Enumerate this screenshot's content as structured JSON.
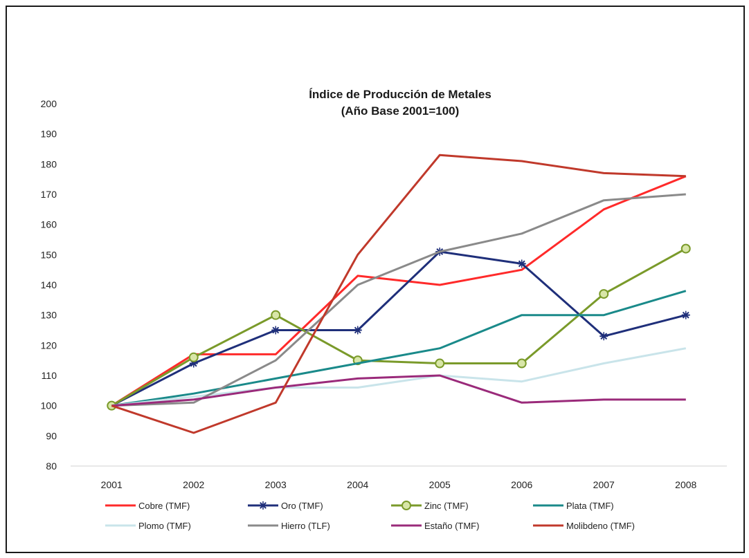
{
  "chart_data": {
    "type": "line",
    "title": "Índice de Producción de Metales",
    "subtitle": "(Año Base 2001=100)",
    "xlabel": "",
    "ylabel": "",
    "categories": [
      "2001",
      "2002",
      "2003",
      "2004",
      "2005",
      "2006",
      "2007",
      "2008"
    ],
    "ylim": [
      80,
      200
    ],
    "yticks": [
      80,
      90,
      100,
      110,
      120,
      130,
      140,
      150,
      160,
      170,
      180,
      190,
      200
    ],
    "grid": false,
    "legend_position": "bottom",
    "series": [
      {
        "name": "Cobre (TMF)",
        "color": "#ff2a2a",
        "marker": "none",
        "values": [
          100,
          117,
          117,
          143,
          140,
          145,
          165,
          176
        ]
      },
      {
        "name": "Oro (TMF)",
        "color": "#1f2f7a",
        "marker": "star",
        "values": [
          100,
          114,
          125,
          125,
          151,
          147,
          123,
          130
        ]
      },
      {
        "name": "Zinc (TMF)",
        "color": "#7a9a2a",
        "marker": "circle",
        "values": [
          100,
          116,
          130,
          115,
          114,
          114,
          137,
          152
        ]
      },
      {
        "name": "Plata (TMF)",
        "color": "#1a8a8a",
        "marker": "none",
        "values": [
          100,
          104,
          109,
          114,
          119,
          130,
          130,
          138
        ]
      },
      {
        "name": "Plomo (TMF)",
        "color": "#c9e4ea",
        "marker": "none",
        "values": [
          100,
          103,
          106,
          106,
          110,
          108,
          114,
          119
        ]
      },
      {
        "name": "Hierro (TLF)",
        "color": "#8a8a8a",
        "marker": "none",
        "values": [
          100,
          101,
          115,
          140,
          151,
          157,
          168,
          170
        ]
      },
      {
        "name": "Estaño (TMF)",
        "color": "#9a2a7a",
        "marker": "none",
        "values": [
          100,
          102,
          106,
          109,
          110,
          101,
          102,
          102
        ]
      },
      {
        "name": "Molibdeno (TMF)",
        "color": "#c0392b",
        "marker": "none",
        "values": [
          100,
          91,
          101,
          150,
          183,
          181,
          177,
          176
        ]
      }
    ]
  }
}
